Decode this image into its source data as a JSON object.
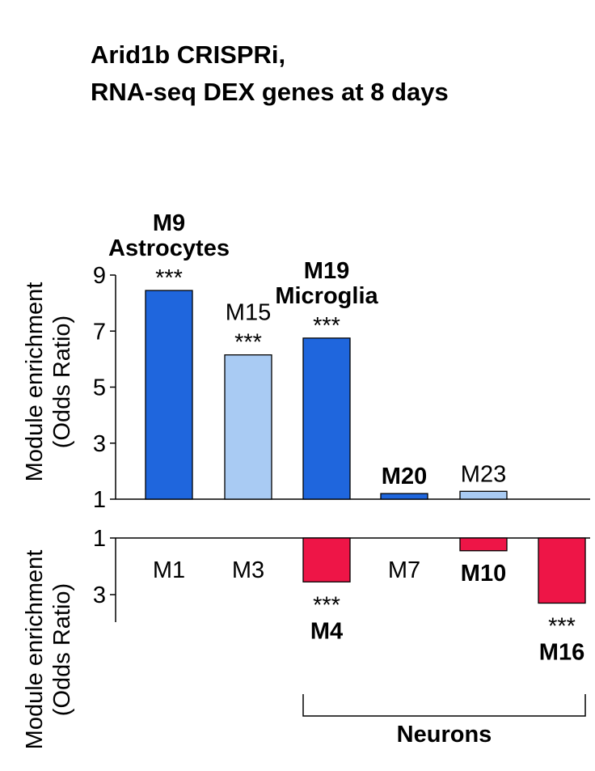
{
  "title_lines": [
    "Arid1b CRISPRi,",
    "RNA-seq DEX genes at 8 days"
  ],
  "colors": {
    "dark_blue": "#1f66dd",
    "light_blue": "#a9cbf3",
    "red": "#ee1547",
    "axis": "#000000"
  },
  "chart_data": [
    {
      "type": "bar",
      "panel": "upper",
      "title": "Arid1b CRISPRi, RNA-seq DEX genes at 8 days",
      "ylabel": [
        "Module enrichment",
        "(Odds Ratio)"
      ],
      "ylim": [
        1,
        9
      ],
      "yticks": [
        1,
        3,
        5,
        7,
        9
      ],
      "categories": [
        "M9",
        "M15",
        "M19",
        "M20",
        "M23"
      ],
      "values": [
        8.45,
        6.15,
        6.75,
        1.2,
        1.28
      ],
      "bar_style": [
        "dark",
        "light",
        "dark",
        "dark",
        "light"
      ],
      "labels": [
        {
          "lines": [
            "M9",
            "Astrocytes",
            "***"
          ],
          "bold": [
            true,
            true,
            false
          ]
        },
        {
          "lines": [
            "M15",
            "***"
          ],
          "bold": [
            false,
            false
          ]
        },
        {
          "lines": [
            "M19",
            "Microglia",
            "***"
          ],
          "bold": [
            true,
            true,
            false
          ]
        },
        {
          "lines": [
            "M20"
          ],
          "bold": [
            true
          ]
        },
        {
          "lines": [
            "M23"
          ],
          "bold": [
            false
          ]
        }
      ]
    },
    {
      "type": "bar",
      "panel": "lower",
      "orientation": "downward",
      "ylabel": [
        "Module enrichment",
        "(Odds Ratio)"
      ],
      "ylim": [
        1,
        4
      ],
      "yticks": [
        1,
        3
      ],
      "categories": [
        "M1",
        "M3",
        "M4",
        "M7",
        "M10",
        "M16"
      ],
      "values": [
        1,
        1,
        2.55,
        1,
        1.45,
        3.3
      ],
      "bar_style": [
        "none",
        "none",
        "red",
        "none",
        "red",
        "red"
      ],
      "labels": [
        {
          "lines": [
            "M1"
          ],
          "bold": [
            false
          ]
        },
        {
          "lines": [
            "M3"
          ],
          "bold": [
            false
          ]
        },
        {
          "lines": [
            "***",
            "M4"
          ],
          "bold": [
            false,
            true
          ]
        },
        {
          "lines": [
            "M7"
          ],
          "bold": [
            false
          ]
        },
        {
          "lines": [
            "M10"
          ],
          "bold": [
            true
          ]
        },
        {
          "lines": [
            "***",
            "M16"
          ],
          "bold": [
            false,
            true
          ]
        }
      ],
      "annotation": "Neurons"
    }
  ]
}
